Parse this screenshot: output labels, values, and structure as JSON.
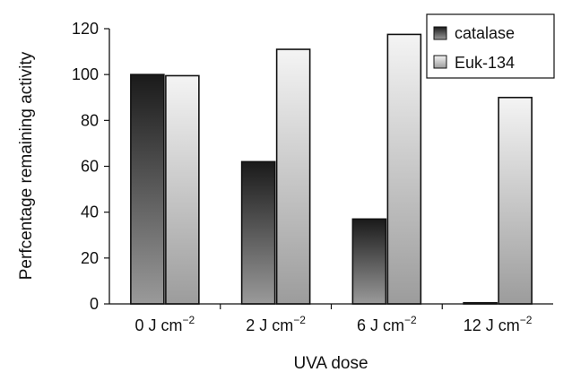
{
  "chart_data": {
    "type": "bar",
    "title": "",
    "xlabel": "UVA dose",
    "ylabel": "Perfcentage remaining activity",
    "ylim": [
      0,
      120
    ],
    "yticks": [
      0,
      20,
      40,
      60,
      80,
      100,
      120
    ],
    "categories": [
      {
        "base": "0 J cm",
        "sup": "−2"
      },
      {
        "base": "2 J cm",
        "sup": "−2"
      },
      {
        "base": "6 J cm",
        "sup": "−2"
      },
      {
        "base": "12 J cm",
        "sup": "−2"
      }
    ],
    "series": [
      {
        "name": "catalase",
        "values": [
          100,
          62,
          37,
          0.5
        ],
        "gradient": [
          "#1a1a1a",
          "#9a9a9a"
        ]
      },
      {
        "name": "Euk-134",
        "values": [
          99.5,
          111,
          117.5,
          90
        ],
        "gradient": [
          "#f4f4f4",
          "#9c9c9c"
        ]
      }
    ],
    "legend_position": "top-right",
    "grid": false
  }
}
